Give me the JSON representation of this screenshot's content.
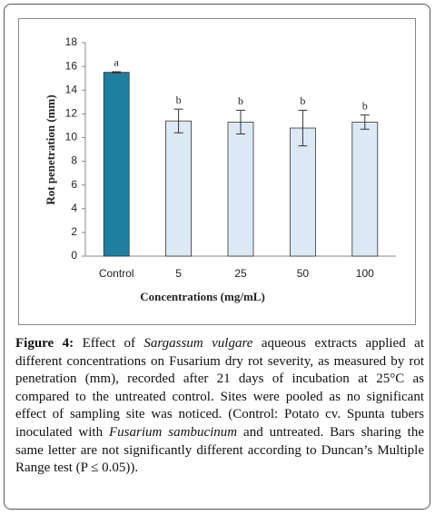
{
  "chart_data": {
    "type": "bar",
    "categories": [
      "Control",
      "5",
      "25",
      "50",
      "100"
    ],
    "values": [
      15.5,
      11.4,
      11.3,
      10.8,
      11.3
    ],
    "errors": [
      0.05,
      1.0,
      1.0,
      1.5,
      0.6
    ],
    "letters": [
      "a",
      "b",
      "b",
      "b",
      "b"
    ],
    "colors": [
      "#1f7fa0",
      "#dce9f5",
      "#dce9f5",
      "#dce9f5",
      "#dce9f5"
    ],
    "xlabel": "Concentrations (mg/mL)",
    "ylabel": "Rot penetration (mm)",
    "ylim": [
      0,
      18
    ],
    "yticks": [
      0,
      2,
      4,
      6,
      8,
      10,
      12,
      14,
      16,
      18
    ]
  },
  "caption": {
    "parts": [
      "Figure 4:",
      " Effect of ",
      "Sargassum vulgare",
      " aqueous extracts applied at different concentrations on Fusarium dry rot severity, as measured by rot penetration (mm), recorded after 21 days of incubation at 25°C as compared to the untreated control. Sites were pooled as no significant effect of sampling site was noticed. (Control: Potato cv. Spunta tubers inoculated with ",
      "Fusarium sambucinum",
      " and untreated. Bars sharing the same letter are not significantly different according to Duncan’s Multiple Range test (P ≤ 0.05))."
    ]
  }
}
